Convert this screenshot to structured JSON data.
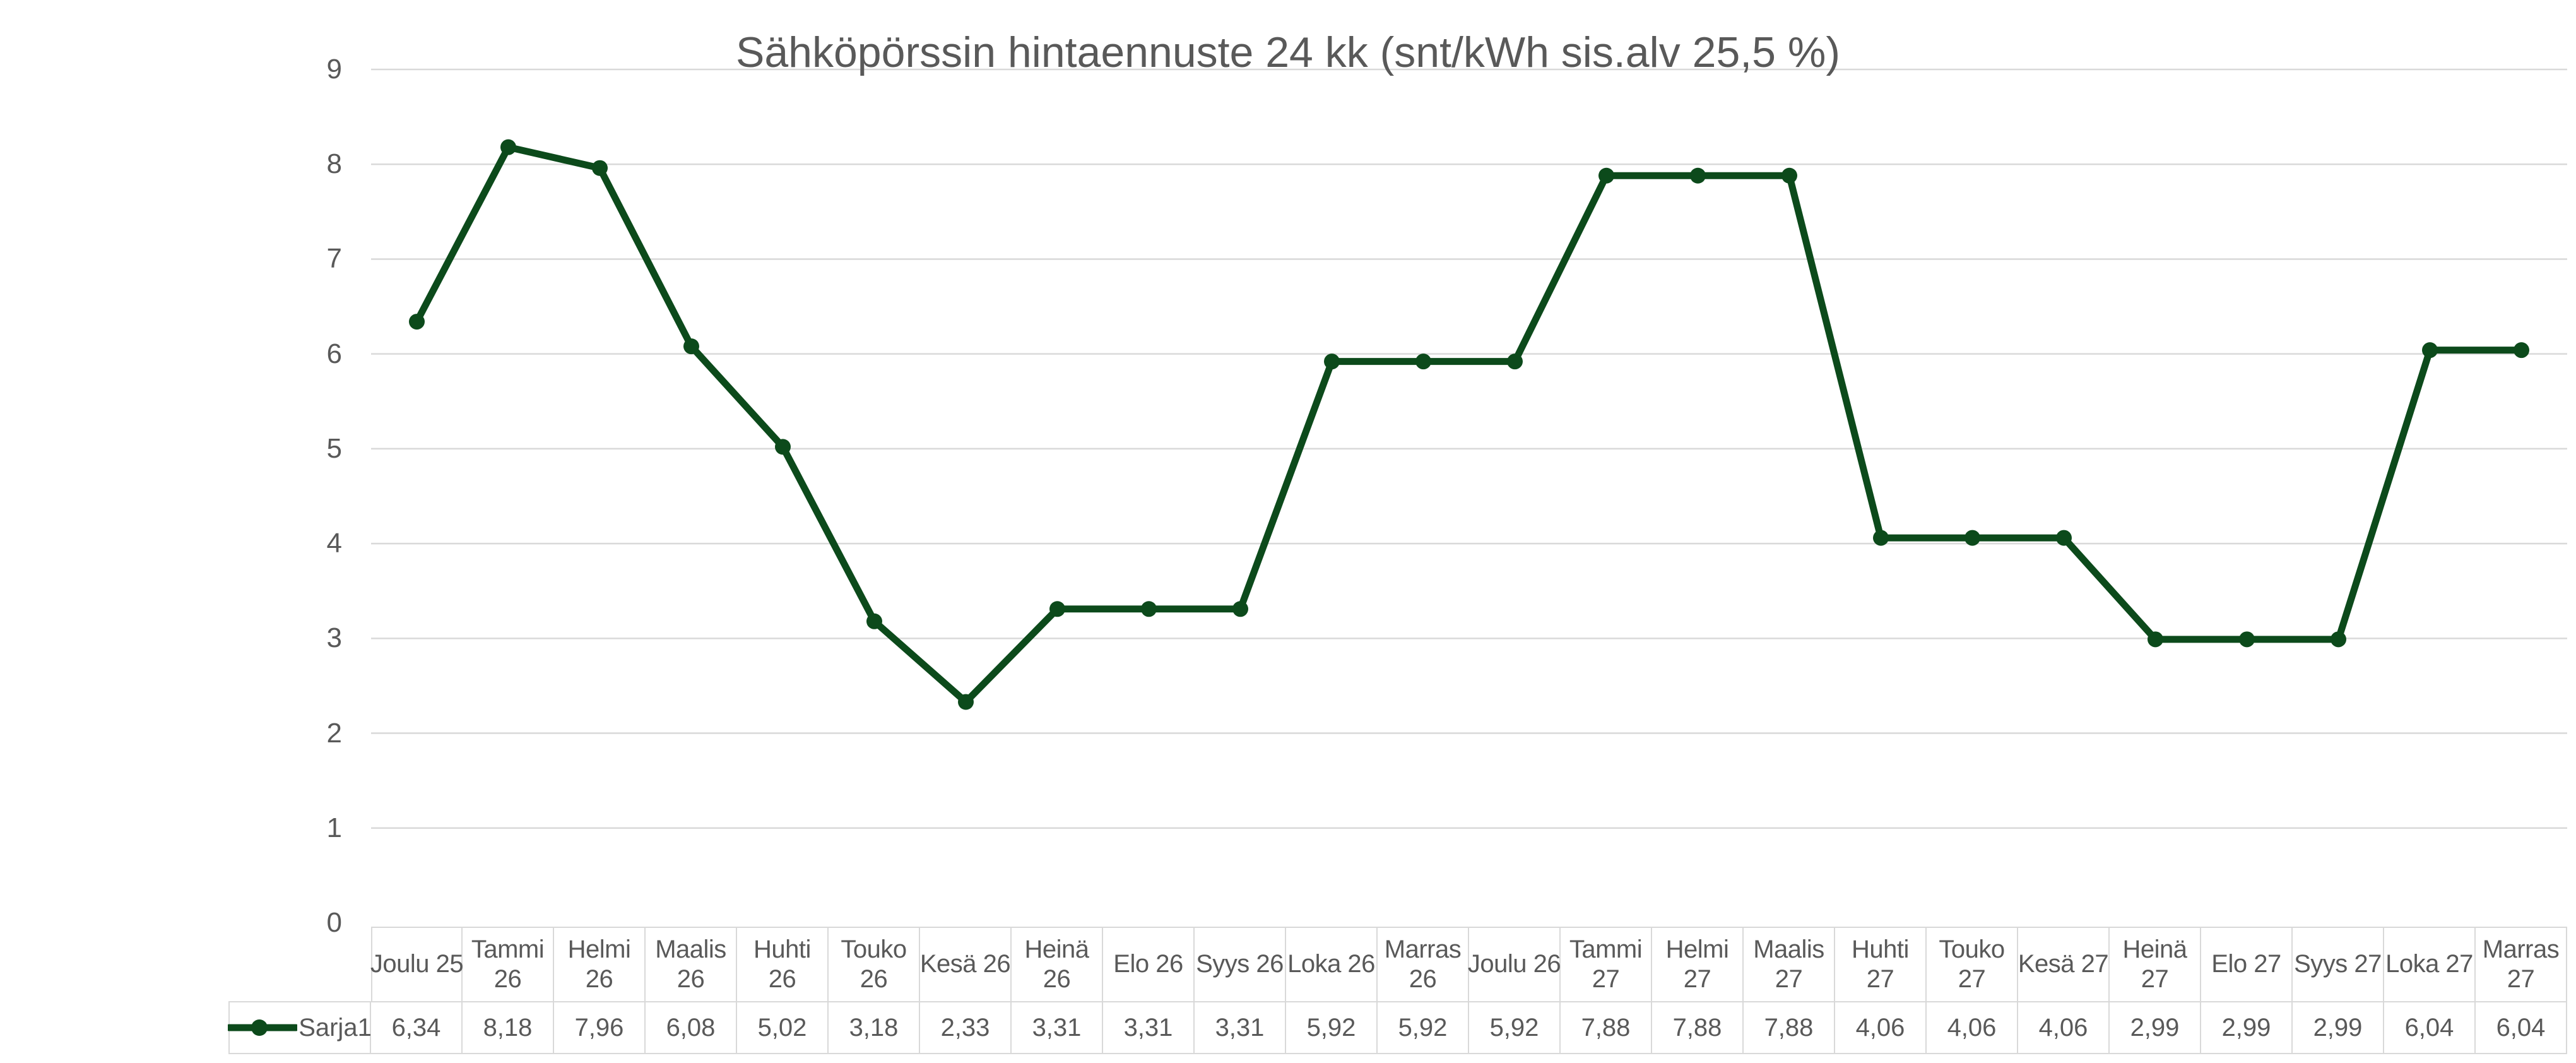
{
  "chart_data": {
    "type": "line",
    "title": "Sähköpörssin hintaennuste 24 kk (snt/kWh sis.alv 25,5 %)",
    "categories": [
      "Joulu 25",
      "Tammi 26",
      "Helmi 26",
      "Maalis 26",
      "Huhti 26",
      "Touko 26",
      "Kesä 26",
      "Heinä 26",
      "Elo 26",
      "Syys 26",
      "Loka 26",
      "Marras 26",
      "Joulu 26",
      "Tammi 27",
      "Helmi 27",
      "Maalis 27",
      "Huhti 27",
      "Touko 27",
      "Kesä 27",
      "Heinä 27",
      "Elo 27",
      "Syys 27",
      "Loka 27",
      "Marras 27"
    ],
    "series": [
      {
        "name": "Sarja1",
        "values": [
          6.34,
          8.18,
          7.96,
          6.08,
          5.02,
          3.18,
          2.33,
          3.31,
          3.31,
          3.31,
          5.92,
          5.92,
          5.92,
          7.88,
          7.88,
          7.88,
          4.06,
          4.06,
          4.06,
          2.99,
          2.99,
          2.99,
          6.04,
          6.04
        ],
        "color": "#0c4a1b",
        "marker": "circle"
      }
    ],
    "ylim": [
      0,
      9
    ],
    "yticks": [
      "0",
      "1",
      "2",
      "3",
      "4",
      "5",
      "6",
      "7",
      "8",
      "9"
    ],
    "grid": "horizontal",
    "legend_position": "bottom-left-of-data-table",
    "xlabel": "",
    "ylabel": ""
  },
  "data_table": {
    "legend_label": "Sarja1",
    "headers": [
      "Joulu 25",
      "Tammi\n26",
      "Helmi\n26",
      "Maalis\n26",
      "Huhti\n26",
      "Touko\n26",
      "Kesä 26",
      "Heinä\n26",
      "Elo 26",
      "Syys 26",
      "Loka 26",
      "Marras\n26",
      "Joulu 26",
      "Tammi\n27",
      "Helmi\n27",
      "Maalis\n27",
      "Huhti\n27",
      "Touko\n27",
      "Kesä 27",
      "Heinä\n27",
      "Elo 27",
      "Syys 27",
      "Loka 27",
      "Marras\n27"
    ],
    "values": [
      "6,34",
      "8,18",
      "7,96",
      "6,08",
      "5,02",
      "3,18",
      "2,33",
      "3,31",
      "3,31",
      "3,31",
      "5,92",
      "5,92",
      "5,92",
      "7,88",
      "7,88",
      "7,88",
      "4,06",
      "4,06",
      "4,06",
      "2,99",
      "2,99",
      "2,99",
      "6,04",
      "6,04"
    ]
  },
  "colors": {
    "series": "#0c4a1b",
    "gridline": "#d9d9d9",
    "table_border": "#d9d9d9",
    "text": "#595959",
    "background": "#ffffff"
  }
}
